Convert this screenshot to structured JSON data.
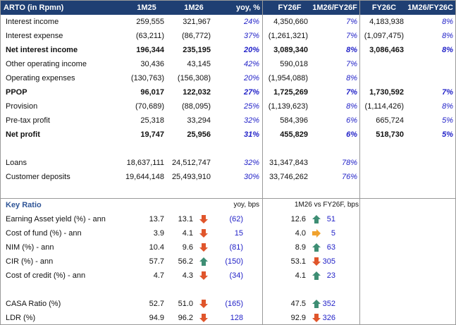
{
  "header": [
    "ARTO (in Rpmn)",
    "1M25",
    "1M26",
    "yoy, %",
    "FY26F",
    "1M26/FY26F",
    "FY26C",
    "1M26/FY26C"
  ],
  "income_statement": [
    {
      "label": "Interest income",
      "bold": false,
      "cells": [
        "259,555",
        "321,967",
        "24%",
        "4,350,660",
        "7%",
        "4,183,938",
        "8%"
      ]
    },
    {
      "label": "Interest expense",
      "bold": false,
      "cells": [
        "(63,211)",
        "(86,772)",
        "37%",
        "(1,261,321)",
        "7%",
        "(1,097,475)",
        "8%"
      ]
    },
    {
      "label": "Net interest income",
      "bold": true,
      "cells": [
        "196,344",
        "235,195",
        "20%",
        "3,089,340",
        "8%",
        "3,086,463",
        "8%"
      ]
    },
    {
      "label": "Other operating income",
      "bold": false,
      "cells": [
        "30,436",
        "43,145",
        "42%",
        "590,018",
        "7%",
        null,
        null
      ]
    },
    {
      "label": "Operating expenses",
      "bold": false,
      "cells": [
        "(130,763)",
        "(156,308)",
        "20%",
        "(1,954,088)",
        "8%",
        null,
        null
      ]
    },
    {
      "label": "PPOP",
      "bold": true,
      "cells": [
        "96,017",
        "122,032",
        "27%",
        "1,725,269",
        "7%",
        "1,730,592",
        "7%"
      ]
    },
    {
      "label": "Provision",
      "bold": false,
      "cells": [
        "(70,689)",
        "(88,095)",
        "25%",
        "(1,139,623)",
        "8%",
        "(1,114,426)",
        "8%"
      ]
    },
    {
      "label": "Pre-tax profit",
      "bold": false,
      "cells": [
        "25,318",
        "33,294",
        "32%",
        "584,396",
        "6%",
        "665,724",
        "5%"
      ]
    },
    {
      "label": "Net profit",
      "bold": true,
      "cells": [
        "19,747",
        "25,956",
        "31%",
        "455,829",
        "6%",
        "518,730",
        "5%"
      ]
    }
  ],
  "balance_sheet": [
    {
      "label": "Loans",
      "bold": false,
      "cells": [
        "18,637,111",
        "24,512,747",
        "32%",
        "31,347,843",
        "78%",
        null,
        null
      ]
    },
    {
      "label": "Customer deposits",
      "bold": false,
      "cells": [
        "19,644,148",
        "25,493,910",
        "30%",
        "33,746,262",
        "76%",
        null,
        null
      ]
    }
  ],
  "key_ratio": {
    "title": "Key Ratio",
    "yoy_note": "yoy, bps",
    "fy_note": "1M26 vs FY26F, bps",
    "groups": [
      [
        {
          "label": "Earning Asset yield (%) - ann",
          "m25": "13.7",
          "m26": "13.1",
          "yoy_arrow": "down",
          "yoy": "(62)",
          "fy26f": "12.6",
          "fy_arrow": "up",
          "vs_fy": "51"
        },
        {
          "label": "Cost of fund (%) - ann",
          "m25": "3.9",
          "m26": "4.1",
          "yoy_arrow": "down",
          "yoy": "15",
          "fy26f": "4.0",
          "fy_arrow": "right",
          "vs_fy": "5"
        },
        {
          "label": "NIM (%) - ann",
          "m25": "10.4",
          "m26": "9.6",
          "yoy_arrow": "down",
          "yoy": "(81)",
          "fy26f": "8.9",
          "fy_arrow": "up",
          "vs_fy": "63"
        },
        {
          "label": "CIR (%) - ann",
          "m25": "57.7",
          "m26": "56.2",
          "yoy_arrow": "up",
          "yoy": "(150)",
          "fy26f": "53.1",
          "fy_arrow": "down",
          "vs_fy": "305"
        },
        {
          "label": "Cost of credit (%) - ann",
          "m25": "4.7",
          "m26": "4.3",
          "yoy_arrow": "down",
          "yoy": "(34)",
          "fy26f": "4.1",
          "fy_arrow": "up",
          "vs_fy": "23"
        }
      ],
      [
        {
          "label": "CASA Ratio (%)",
          "m25": "52.7",
          "m26": "51.0",
          "yoy_arrow": "down",
          "yoy": "(165)",
          "fy26f": "47.5",
          "fy_arrow": "up",
          "vs_fy": "352"
        },
        {
          "label": "LDR (%)",
          "m25": "94.9",
          "m26": "96.2",
          "yoy_arrow": "down",
          "yoy": "128",
          "fy26f": "92.9",
          "fy_arrow": "down",
          "vs_fy": "326"
        }
      ]
    ]
  }
}
